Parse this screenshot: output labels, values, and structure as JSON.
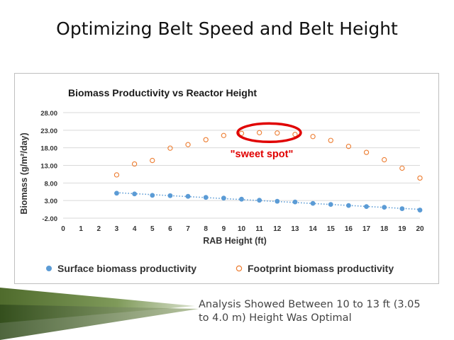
{
  "slide": {
    "title": "Optimizing Belt Speed and Belt Height",
    "caption_line1": "Analysis Showed Between 10 to 13 ft (3.05",
    "caption_line2": "to 4.0 m) Height Was Optimal"
  },
  "colors": {
    "surface": "#5b9bd5",
    "footprint": "#ed7d31",
    "annotation": "#e00000",
    "grid": "#d9d9d9",
    "footer_band": "#5f7a3a"
  },
  "chart_data": {
    "type": "scatter",
    "title": "Biomass Productivity vs Reactor Height",
    "xlabel": "RAB Height (ft)",
    "ylabel": "Biomass (g/m²/day)",
    "xlim": [
      0,
      20
    ],
    "ylim": [
      -2,
      28
    ],
    "x_ticks": [
      "0",
      "1",
      "2",
      "3",
      "4",
      "5",
      "6",
      "7",
      "8",
      "9",
      "10",
      "11",
      "12",
      "13",
      "14",
      "15",
      "16",
      "17",
      "18",
      "19",
      "20"
    ],
    "y_ticks": [
      "-2.00",
      "3.00",
      "8.00",
      "13.00",
      "18.00",
      "23.00",
      "28.00"
    ],
    "grid": "horizontal",
    "legend": "bottom",
    "series": [
      {
        "name": "Surface biomass productivity",
        "marker": "filled-circle",
        "trendline": "linear-dotted",
        "x": [
          3,
          4,
          5,
          6,
          7,
          8,
          9,
          10,
          11,
          12,
          13,
          14,
          15,
          16,
          17,
          18,
          19,
          20
        ],
        "y": [
          5.1,
          4.9,
          4.5,
          4.4,
          4.2,
          3.9,
          3.7,
          3.4,
          3.1,
          2.8,
          2.6,
          2.2,
          1.9,
          1.6,
          1.3,
          1.1,
          0.7,
          0.3
        ]
      },
      {
        "name": "Footprint biomass productivity",
        "marker": "open-circle",
        "x": [
          3,
          4,
          5,
          6,
          7,
          8,
          9,
          10,
          11,
          12,
          13,
          14,
          15,
          16,
          17,
          18,
          19,
          20
        ],
        "y": [
          10.3,
          13.4,
          14.4,
          17.9,
          18.9,
          20.3,
          21.5,
          22.1,
          22.3,
          22.2,
          21.8,
          21.2,
          20.1,
          18.4,
          16.7,
          14.6,
          12.2,
          9.4
        ]
      }
    ],
    "annotation": {
      "text": "\"sweet spot\"",
      "shape": "ellipse",
      "x_range": [
        9.9,
        13.2
      ],
      "y_center": 22.3
    }
  }
}
